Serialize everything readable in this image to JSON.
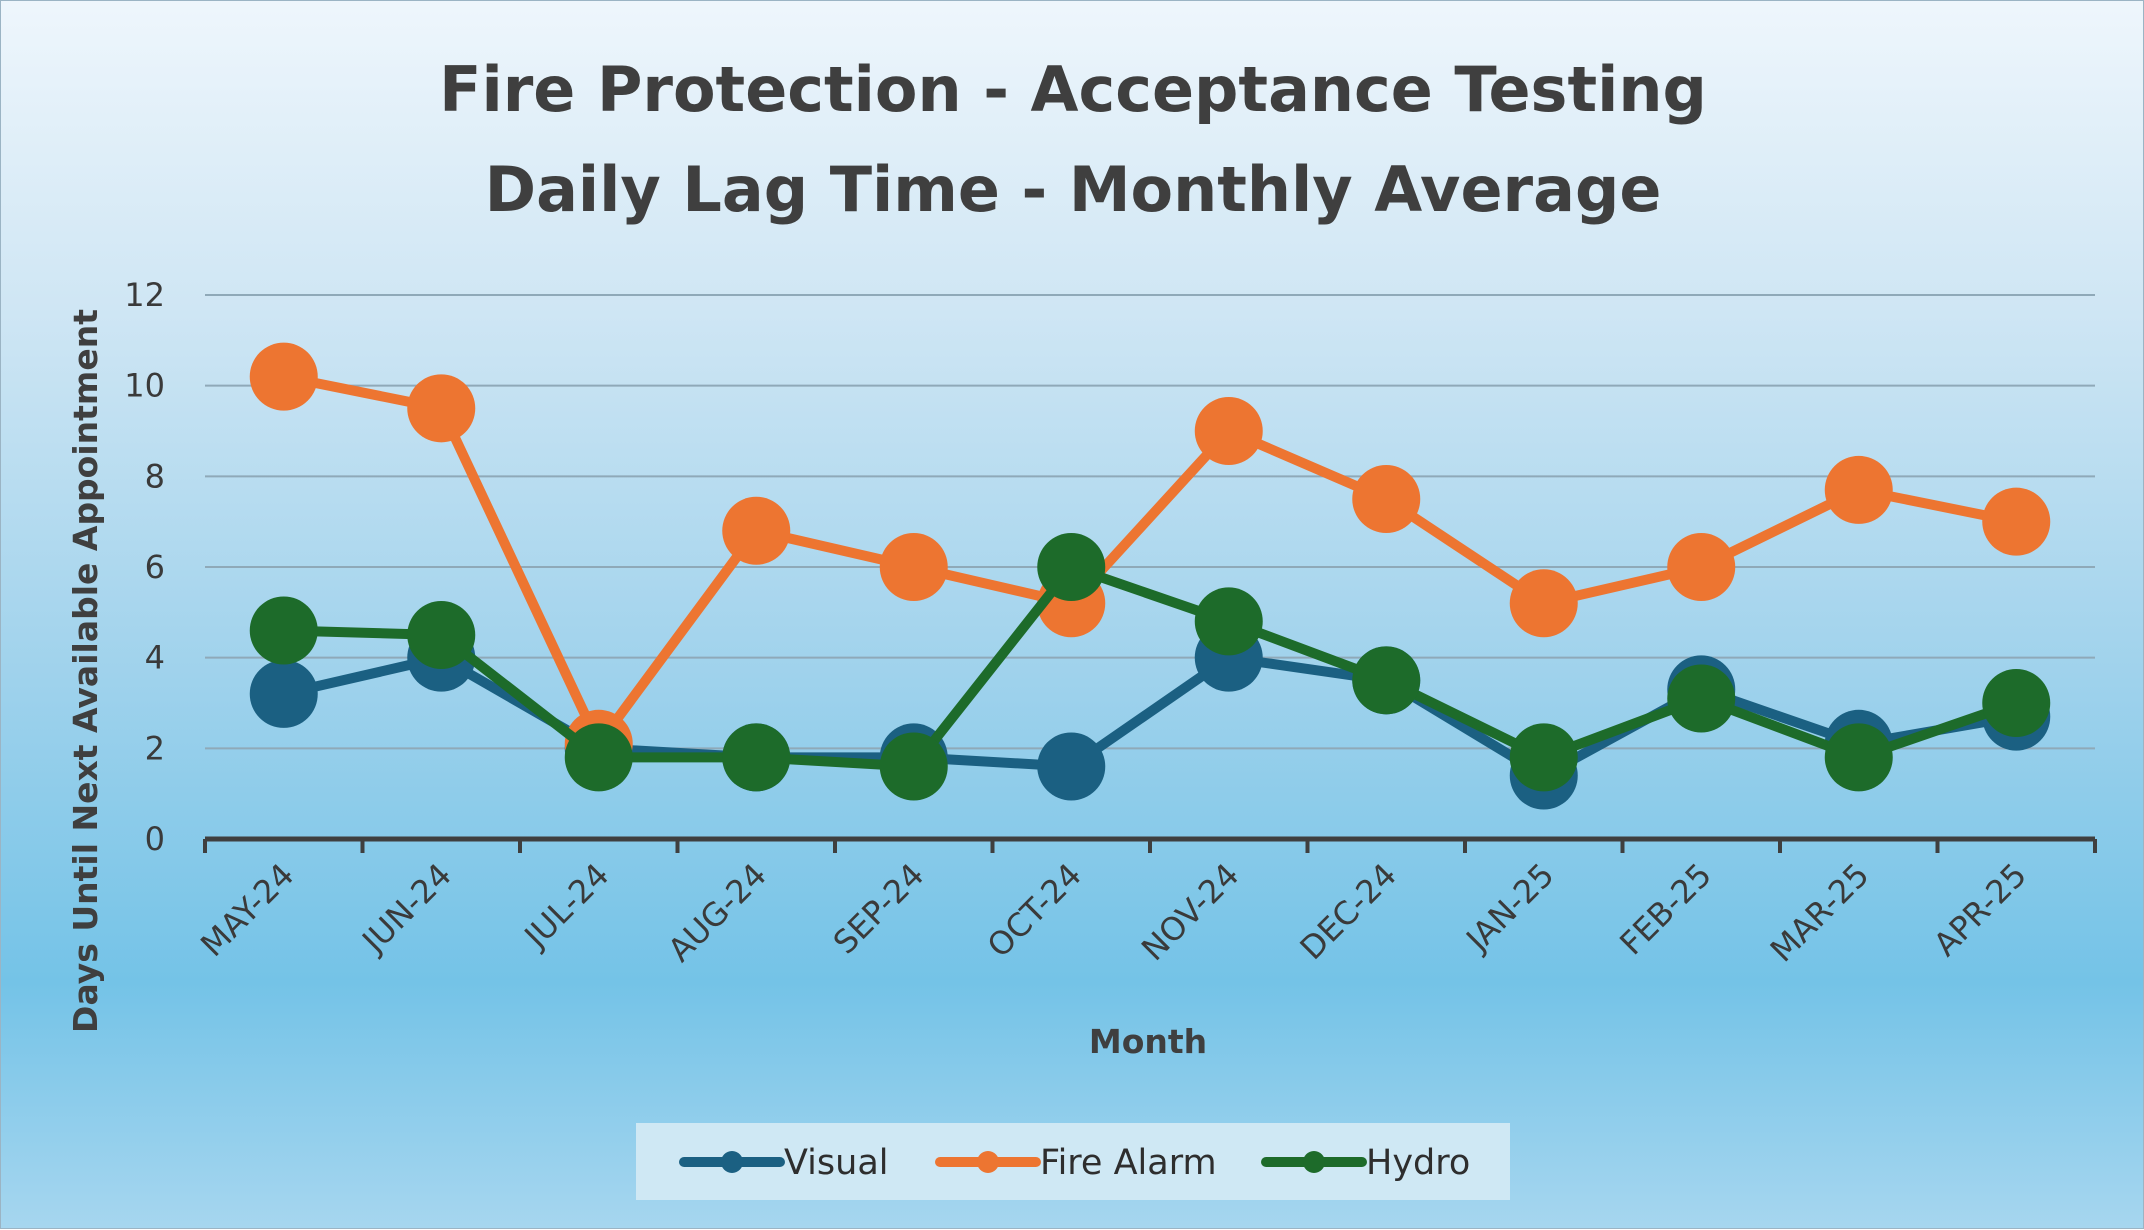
{
  "chart_data": {
    "type": "line",
    "title_lines": [
      "Fire Protection - Acceptance Testing",
      "Daily Lag Time - Monthly Average"
    ],
    "xlabel": "Month",
    "ylabel": "Days Until Next Available Appointment",
    "categories": [
      "MAY-24",
      "JUN-24",
      "JUL-24",
      "AUG-24",
      "SEP-24",
      "OCT-24",
      "NOV-24",
      "DEC-24",
      "JAN-25",
      "FEB-25",
      "MAR-25",
      "APR-25"
    ],
    "ylim": [
      0,
      12
    ],
    "yticks": [
      0,
      2,
      4,
      6,
      8,
      10,
      12
    ],
    "grid": true,
    "legend_position": "bottom",
    "series": [
      {
        "name": "Visual",
        "color": "#1b6082",
        "values": [
          3.2,
          4.0,
          2.0,
          1.8,
          1.8,
          1.6,
          4.0,
          3.5,
          1.4,
          3.3,
          2.1,
          2.7
        ]
      },
      {
        "name": "Fire Alarm",
        "color": "#ed7531",
        "values": [
          10.2,
          9.5,
          2.1,
          6.8,
          6.0,
          5.2,
          9.0,
          7.5,
          5.2,
          6.0,
          7.7,
          7.0
        ]
      },
      {
        "name": "Hydro",
        "color": "#1d6b2a",
        "values": [
          4.6,
          4.5,
          1.8,
          1.8,
          1.6,
          6.0,
          4.8,
          3.5,
          1.8,
          3.1,
          1.8,
          3.0
        ]
      }
    ]
  }
}
